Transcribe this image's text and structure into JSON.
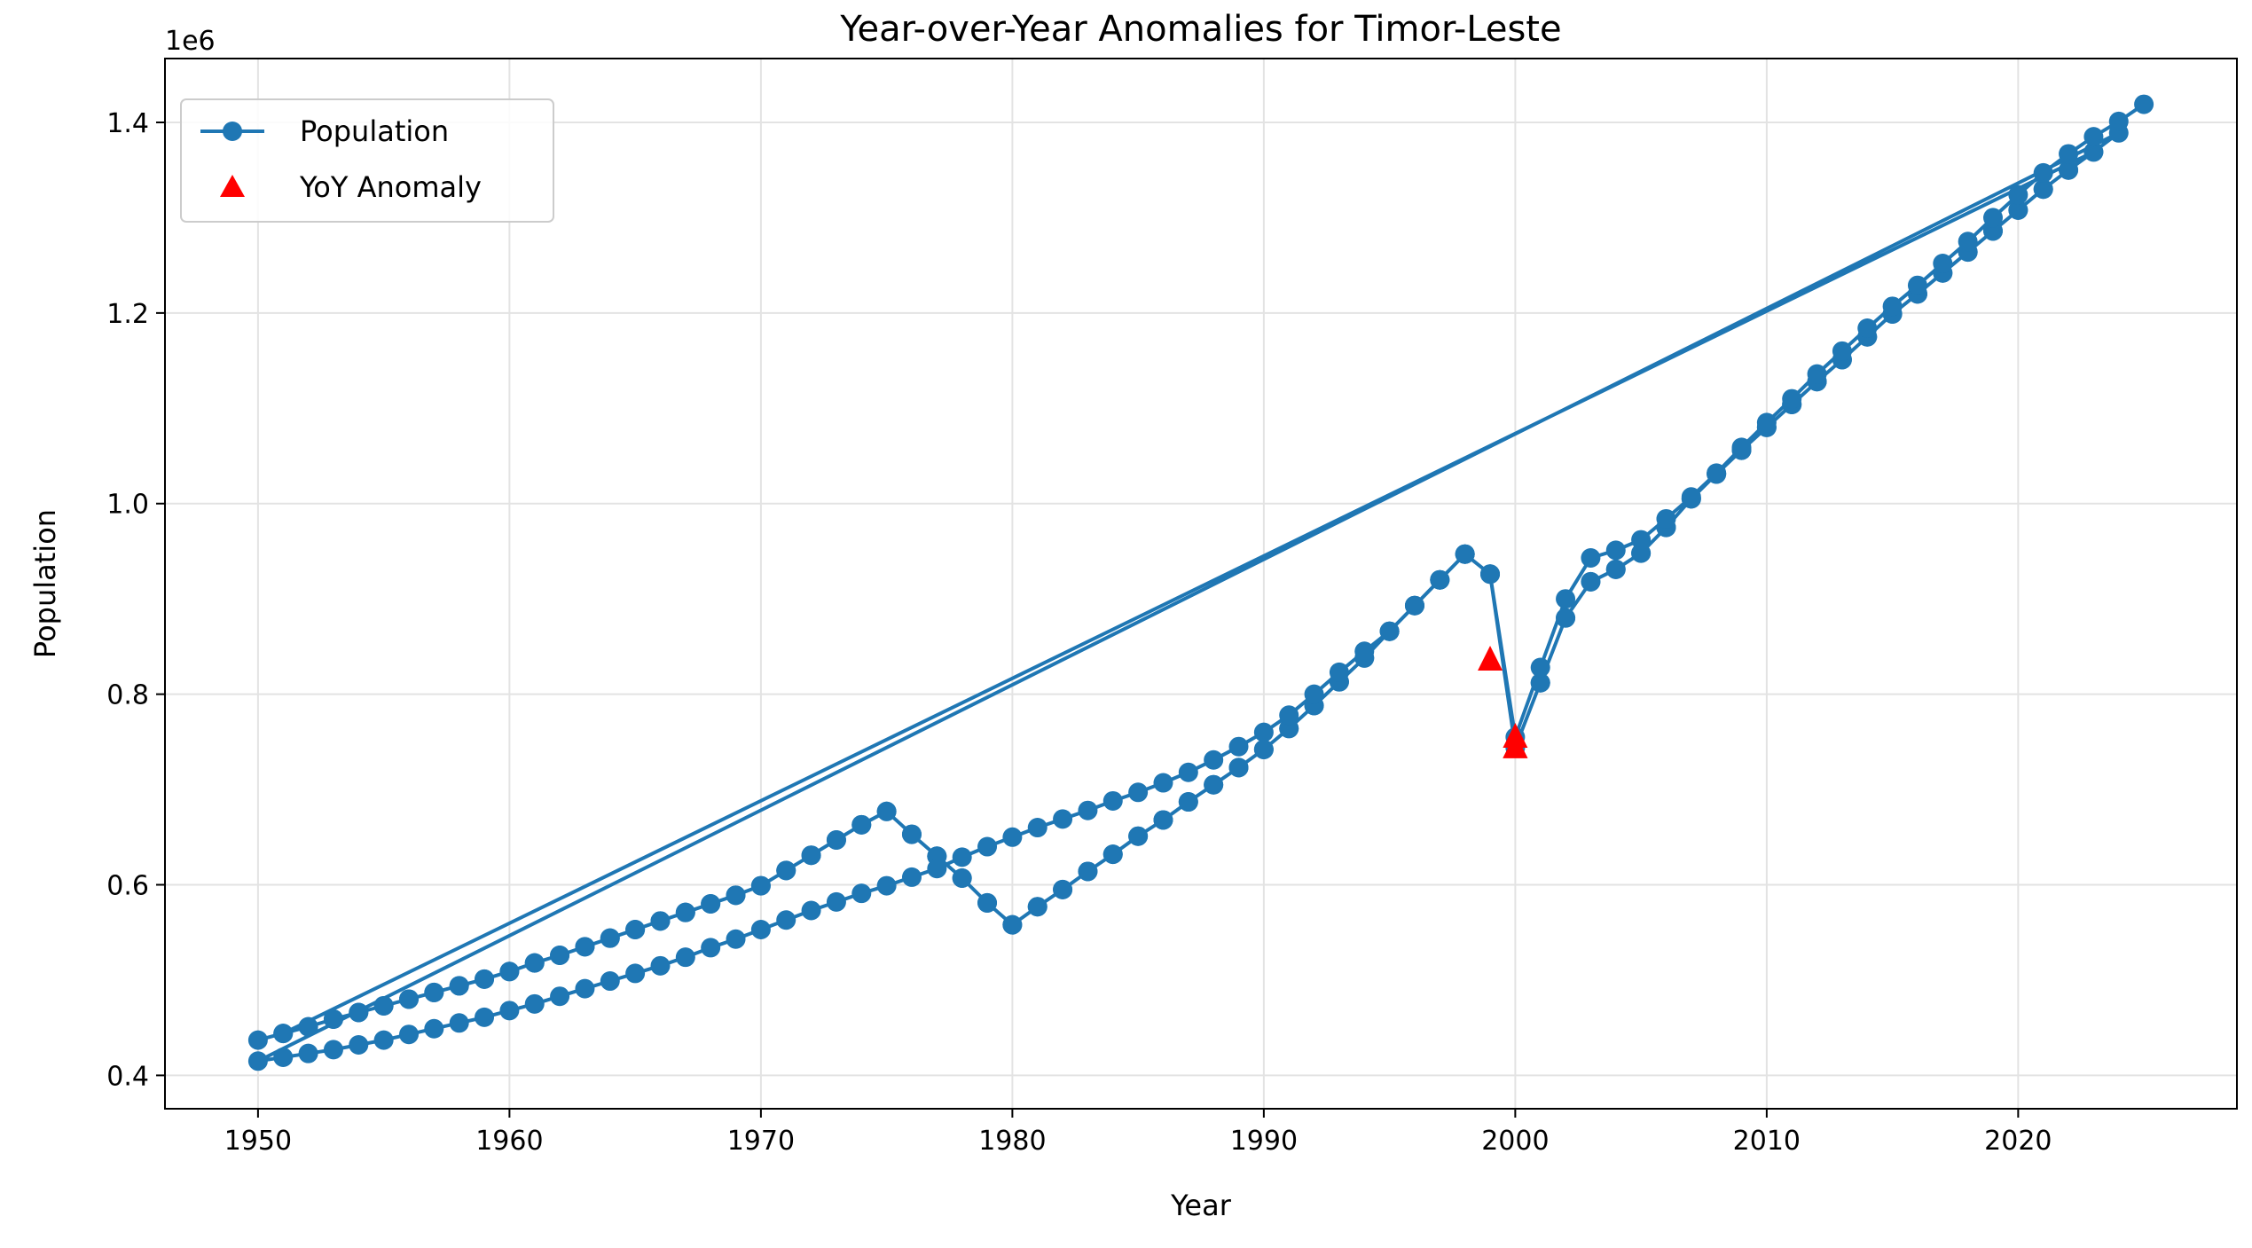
{
  "chart_data": {
    "type": "line",
    "title": "Year-over-Year Anomalies for Timor-Leste",
    "xlabel": "Year",
    "ylabel": "Population",
    "y_offset_label": "1e6",
    "xlim": [
      1946.3,
      2028.7
    ],
    "ylim": [
      0.365,
      1.467
    ],
    "x_ticks": [
      1950,
      1960,
      1970,
      1980,
      1990,
      2000,
      2010,
      2020
    ],
    "y_ticks": [
      0.4,
      0.6,
      0.8,
      1.0,
      1.2,
      1.4
    ],
    "y_tick_labels": [
      "0.4",
      "0.6",
      "0.8",
      "1.0",
      "1.2",
      "1.4"
    ],
    "grid": true,
    "legend_position": "upper-left",
    "colors": {
      "population": "#1f77b4",
      "anomaly": "#ff0000"
    },
    "series": [
      {
        "name": "Population",
        "style": "line-with-circle-markers",
        "segments": [
          {
            "x": [
              1950,
              1951,
              1952,
              1953,
              1954,
              1955,
              1956,
              1957,
              1958,
              1959,
              1960,
              1961,
              1962,
              1963,
              1964,
              1965,
              1966,
              1967,
              1968,
              1969,
              1970,
              1971,
              1972,
              1973,
              1974,
              1975,
              1976,
              1977,
              1978,
              1979,
              1980,
              1981,
              1982,
              1983,
              1984,
              1985,
              1986,
              1987,
              1988,
              1989,
              1990,
              1991,
              1992,
              1993,
              1994,
              1995,
              1996,
              1997,
              1998,
              1999,
              2000,
              2001,
              2002,
              2003,
              2004,
              2005,
              2006,
              2007,
              2008,
              2009,
              2010,
              2011,
              2012,
              2013,
              2014,
              2015,
              2016,
              2017,
              2018,
              2019,
              2020,
              2021,
              2022,
              2023
            ],
            "y": [
              0.437,
              0.444,
              0.451,
              0.459,
              0.466,
              0.473,
              0.48,
              0.487,
              0.494,
              0.501,
              0.509,
              0.518,
              0.526,
              0.535,
              0.544,
              0.553,
              0.562,
              0.571,
              0.58,
              0.589,
              0.599,
              0.615,
              0.631,
              0.647,
              0.663,
              0.677,
              0.653,
              0.63,
              0.607,
              0.581,
              0.558,
              0.577,
              0.595,
              0.614,
              0.632,
              0.651,
              0.668,
              0.687,
              0.705,
              0.723,
              0.742,
              0.764,
              0.788,
              0.813,
              0.838,
              0.866,
              0.893,
              0.92,
              0.947,
              0.926,
              0.744,
              0.812,
              0.88,
              0.918,
              0.931,
              0.948,
              0.975,
              1.005,
              1.031,
              1.056,
              1.08,
              1.104,
              1.128,
              1.151,
              1.175,
              1.199,
              1.22,
              1.242,
              1.264,
              1.286,
              1.308,
              1.33,
              1.35,
              1.369
            ]
          },
          {
            "x": [
              1951,
              1952,
              1953,
              1954,
              1955,
              1956,
              1957,
              1958,
              1959,
              1960,
              1961,
              1962,
              1963,
              1964,
              1965,
              1966,
              1967,
              1968,
              1969,
              1970,
              1971,
              1972,
              1973,
              1974,
              1975,
              1976,
              1977,
              1978,
              1979,
              1980,
              1981,
              1982,
              1983,
              1984,
              1985,
              1986,
              1987,
              1988,
              1989,
              1990,
              1991,
              1992,
              1993,
              1994,
              1995,
              1996,
              1997,
              1998,
              1999,
              2000,
              2001,
              2002,
              2003,
              2004,
              2005,
              2006,
              2007,
              2008,
              2009,
              2010,
              2011,
              2012,
              2013,
              2014,
              2015,
              2016,
              2017,
              2018,
              2019,
              2020,
              2021,
              2022,
              2023,
              2024
            ],
            "y": [
              0.444,
              0.451,
              0.459,
              0.466,
              0.473,
              0.48,
              0.487,
              0.494,
              0.501,
              0.509,
              0.518,
              0.526,
              0.535,
              0.544,
              0.553,
              0.562,
              0.571,
              0.58,
              0.589,
              0.599,
              0.615,
              0.631,
              0.647,
              0.663,
              0.677,
              0.653,
              0.63,
              0.607,
              0.581,
              0.558,
              0.577,
              0.595,
              0.614,
              0.632,
              0.651,
              0.668,
              0.687,
              0.705,
              0.723,
              0.742,
              0.764,
              0.788,
              0.813,
              0.838,
              0.866,
              0.893,
              0.92,
              0.947,
              0.926,
              0.744,
              0.812,
              0.88,
              0.918,
              0.931,
              0.948,
              0.975,
              1.005,
              1.031,
              1.056,
              1.08,
              1.104,
              1.128,
              1.151,
              1.175,
              1.199,
              1.22,
              1.242,
              1.264,
              1.286,
              1.308,
              1.33,
              1.35,
              1.369,
              1.389
            ]
          },
          {
            "x": [
              1950,
              1951,
              1952,
              1953,
              1954,
              1955,
              1956,
              1957,
              1958,
              1959,
              1960,
              1961,
              1962,
              1963,
              1964,
              1965,
              1966,
              1967,
              1968,
              1969,
              1970,
              1971,
              1972,
              1973,
              1974,
              1975,
              1976,
              1977,
              1978,
              1979,
              1980,
              1981,
              1982,
              1983,
              1984,
              1985,
              1986,
              1987,
              1988,
              1989,
              1990,
              1991,
              1992,
              1993,
              1994,
              1995,
              1996,
              1997,
              1998,
              1999,
              2000,
              2001,
              2002,
              2003,
              2004,
              2005,
              2006,
              2007,
              2008,
              2009,
              2010,
              2011,
              2012,
              2013,
              2014,
              2015,
              2016,
              2017,
              2018,
              2019,
              2020,
              2021,
              2022,
              2023,
              2024,
              2025
            ],
            "y": [
              0.415,
              0.419,
              0.423,
              0.427,
              0.432,
              0.437,
              0.443,
              0.449,
              0.455,
              0.461,
              0.468,
              0.475,
              0.483,
              0.491,
              0.499,
              0.507,
              0.515,
              0.524,
              0.534,
              0.543,
              0.553,
              0.563,
              0.573,
              0.582,
              0.591,
              0.599,
              0.608,
              0.617,
              0.629,
              0.64,
              0.65,
              0.66,
              0.669,
              0.678,
              0.688,
              0.697,
              0.707,
              0.718,
              0.731,
              0.745,
              0.76,
              0.778,
              0.8,
              0.823,
              0.845,
              0.866,
              0.893,
              0.92,
              0.947,
              0.926,
              0.755,
              0.828,
              0.9,
              0.943,
              0.951,
              0.962,
              0.984,
              1.007,
              1.032,
              1.059,
              1.085,
              1.11,
              1.136,
              1.16,
              1.184,
              1.207,
              1.229,
              1.252,
              1.275,
              1.3,
              1.324,
              1.347,
              1.367,
              1.385,
              1.401,
              1.419
            ]
          }
        ]
      },
      {
        "name": "YoY Anomaly",
        "style": "triangle-markers",
        "x": [
          1999,
          2000,
          2000,
          2000
        ],
        "y": [
          0.836,
          0.755,
          0.744,
          0.744
        ]
      }
    ]
  }
}
